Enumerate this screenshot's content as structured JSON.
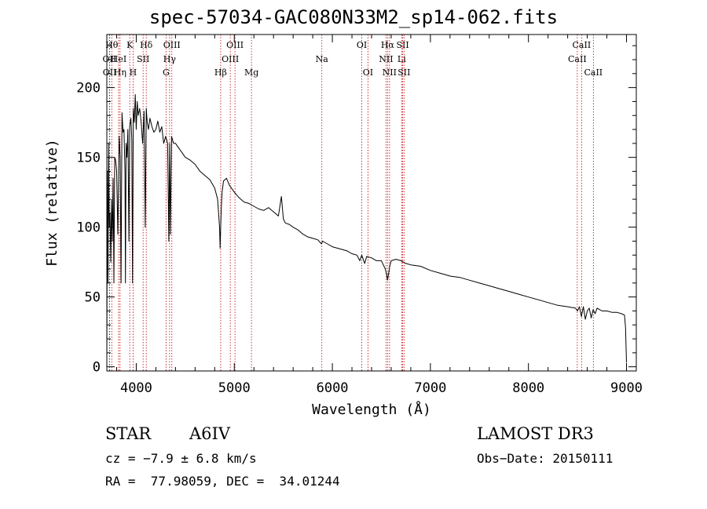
{
  "chart_data": {
    "type": "line",
    "title": "spec-57034-GAC080N33M2_sp14-062.fits",
    "xlabel": "Wavelength (Å)",
    "ylabel": "Flux (relative)",
    "xlim": [
      3700,
      9100
    ],
    "ylim": [
      -3,
      238
    ],
    "xticks": [
      4000,
      5000,
      6000,
      7000,
      8000,
      9000
    ],
    "xtick_labels": [
      "4000",
      "5000",
      "6000",
      "7000",
      "8000",
      "9000"
    ],
    "yticks": [
      0,
      50,
      100,
      150,
      200
    ],
    "ytick_labels": [
      "0",
      "50",
      "100",
      "150",
      "200"
    ],
    "grid": false,
    "series": [
      {
        "name": "spectrum",
        "x": [
          3700,
          3705,
          3712,
          3718,
          3725,
          3732,
          3740,
          3748,
          3756,
          3764,
          3772,
          3780,
          3790,
          3800,
          3812,
          3826,
          3836,
          3845,
          3855,
          3865,
          3875,
          3885,
          3890,
          3896,
          3905,
          3915,
          3925,
          3933,
          3945,
          3955,
          3962,
          3970,
          3980,
          3990,
          4000,
          4010,
          4020,
          4035,
          4050,
          4065,
          4080,
          4092,
          4102,
          4112,
          4125,
          4140,
          4160,
          4180,
          4200,
          4220,
          4240,
          4260,
          4280,
          4300,
          4320,
          4332,
          4340,
          4348,
          4360,
          4380,
          4400,
          4450,
          4500,
          4550,
          4600,
          4650,
          4700,
          4750,
          4800,
          4830,
          4850,
          4855,
          4861,
          4868,
          4875,
          4890,
          4920,
          4950,
          5000,
          5050,
          5100,
          5150,
          5200,
          5250,
          5300,
          5350,
          5400,
          5450,
          5480,
          5500,
          5520,
          5560,
          5600,
          5650,
          5700,
          5750,
          5800,
          5850,
          5890,
          5900,
          5950,
          6000,
          6050,
          6100,
          6150,
          6200,
          6250,
          6280,
          6300,
          6330,
          6350,
          6400,
          6450,
          6500,
          6540,
          6555,
          6563,
          6570,
          6585,
          6600,
          6650,
          6700,
          6750,
          6800,
          6900,
          7000,
          7100,
          7200,
          7300,
          7400,
          7500,
          7600,
          7700,
          7800,
          7900,
          8000,
          8100,
          8200,
          8300,
          8400,
          8480,
          8500,
          8520,
          8540,
          8560,
          8580,
          8600,
          8620,
          8640,
          8660,
          8680,
          8700,
          8750,
          8800,
          8850,
          8900,
          8950,
          8980,
          8990,
          9000
        ],
        "y": [
          0,
          140,
          60,
          160,
          100,
          110,
          75,
          120,
          90,
          135,
          60,
          150,
          148,
          140,
          95,
          165,
          150,
          60,
          182,
          168,
          170,
          140,
          60,
          160,
          150,
          170,
          90,
          172,
          178,
          163,
          60,
          185,
          175,
          195,
          170,
          190,
          180,
          185,
          175,
          160,
          183,
          100,
          185,
          175,
          170,
          178,
          172,
          168,
          170,
          176,
          168,
          172,
          160,
          165,
          160,
          90,
          160,
          95,
          165,
          160,
          160,
          155,
          150,
          148,
          145,
          140,
          137,
          134,
          128,
          120,
          100,
          85,
          100,
          115,
          125,
          133,
          135,
          130,
          125,
          121,
          118,
          117,
          115,
          113,
          112,
          114,
          111,
          108,
          122,
          106,
          103,
          102,
          100,
          98,
          95,
          93,
          92,
          91,
          88,
          90,
          88,
          86,
          85,
          84,
          83,
          81,
          80,
          76,
          80,
          74,
          79,
          78,
          76,
          76,
          70,
          66,
          62,
          65,
          72,
          76,
          77,
          76,
          74,
          73,
          72,
          69,
          67,
          65,
          64,
          62,
          60,
          58,
          56,
          54,
          52,
          50,
          48,
          46,
          44,
          43,
          42,
          40,
          43,
          36,
          43,
          34,
          40,
          42,
          35,
          41,
          38,
          42,
          40,
          40,
          39,
          39,
          38,
          37,
          28,
          3
        ]
      }
    ],
    "annotations": [
      {
        "name": "OII",
        "x": 3727,
        "row": 2
      },
      {
        "name": "Hθ",
        "x": 3750,
        "row": 1
      },
      {
        "name": "OII",
        "x": 3729,
        "row": 3
      },
      {
        "name": "Hη",
        "x": 3835,
        "row": 3
      },
      {
        "name": "HeI",
        "x": 3820,
        "row": 2
      },
      {
        "name": "K",
        "x": 3934,
        "row": 1
      },
      {
        "name": "H",
        "x": 3968,
        "row": 3
      },
      {
        "name": "SII",
        "x": 4070,
        "row": 2
      },
      {
        "name": "Hδ",
        "x": 4102,
        "row": 1
      },
      {
        "name": "OIII",
        "x": 4363,
        "row": 1
      },
      {
        "name": "Hγ",
        "x": 4340,
        "row": 2
      },
      {
        "name": "G",
        "x": 4304,
        "row": 3
      },
      {
        "name": "Hβ",
        "x": 4861,
        "row": 3
      },
      {
        "name": "OIII",
        "x": 4959,
        "row": 2
      },
      {
        "name": "OIII",
        "x": 5007,
        "row": 1
      },
      {
        "name": "Mg",
        "x": 5175,
        "row": 3
      },
      {
        "name": "Na",
        "x": 5893,
        "row": 2
      },
      {
        "name": "OI",
        "x": 6300,
        "row": 1
      },
      {
        "name": "OI",
        "x": 6363,
        "row": 3
      },
      {
        "name": "Hα",
        "x": 6563,
        "row": 1
      },
      {
        "name": "NII",
        "x": 6548,
        "row": 2
      },
      {
        "name": "NII",
        "x": 6583,
        "row": 3
      },
      {
        "name": "SII",
        "x": 6717,
        "row": 1
      },
      {
        "name": "Li",
        "x": 6707,
        "row": 2
      },
      {
        "name": "SII",
        "x": 6731,
        "row": 3
      },
      {
        "name": "CaII",
        "x": 8498,
        "row": 2
      },
      {
        "name": "CaII",
        "x": 8542,
        "row": 1
      },
      {
        "name": "CaII",
        "x": 8662,
        "row": 3
      }
    ]
  },
  "info": {
    "class": "STAR",
    "subclass": "A6IV",
    "survey": "LAMOST DR3",
    "cz": "cz = −7.9 ± 6.8 km/s",
    "obs_date": "Obs−Date: 20150111",
    "coords": "RA =  77.98059, DEC =  34.01244"
  },
  "colors": {
    "line": "#000000",
    "marker": "#c00000"
  }
}
